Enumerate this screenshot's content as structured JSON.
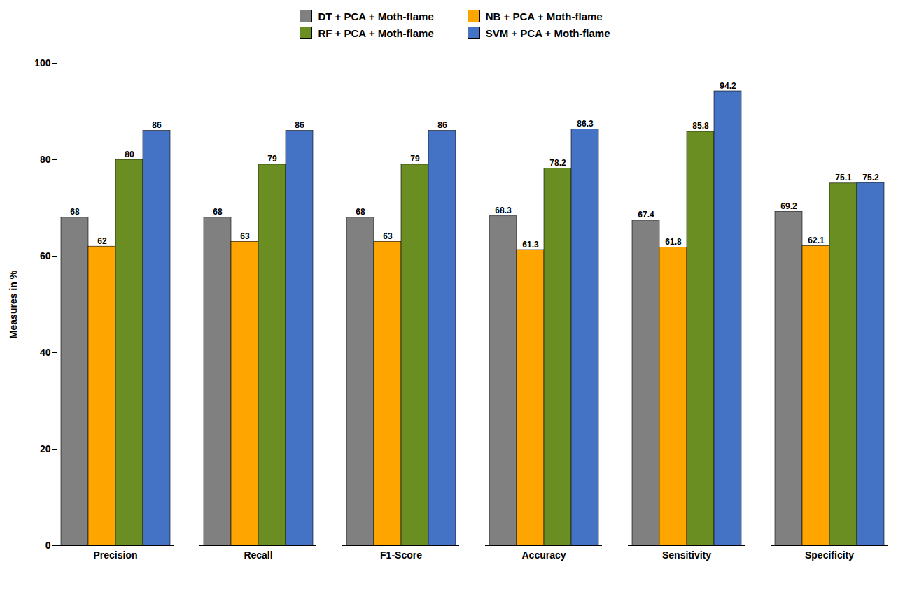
{
  "chart_data": {
    "type": "bar",
    "categories": [
      "Precision",
      "Recall",
      "F1-Score",
      "Accuracy",
      "Sensitivity",
      "Specificity"
    ],
    "series": [
      {
        "name": "DT + PCA + Moth-flame",
        "color": "#808080",
        "values": [
          68,
          68,
          68,
          68.3,
          67.4,
          69.2
        ]
      },
      {
        "name": "NB + PCA + Moth-flame",
        "color": "#FFA500",
        "values": [
          62,
          63,
          63,
          61.3,
          61.8,
          62.1
        ]
      },
      {
        "name": "RF + PCA + Moth-flame",
        "color": "#6B8E23",
        "values": [
          80,
          79,
          79,
          78.2,
          85.8,
          75.1
        ]
      },
      {
        "name": "SVM + PCA + Moth-flame",
        "color": "#4472C4",
        "values": [
          86,
          86,
          86,
          86.3,
          94.2,
          75.2
        ]
      }
    ],
    "ylabel": "Measures in %",
    "ylim": [
      0,
      100
    ],
    "yticks": [
      0,
      20,
      40,
      60,
      80,
      100
    ],
    "grid": false,
    "legend": "top",
    "data_labels": true
  }
}
